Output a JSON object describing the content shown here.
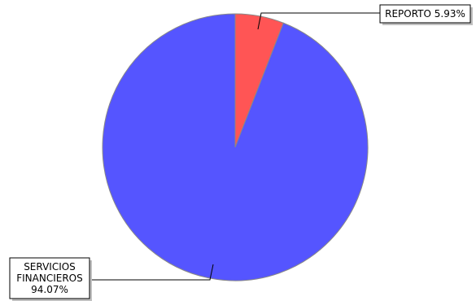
{
  "chart_data": {
    "type": "pie",
    "title": "",
    "slices": [
      {
        "category": "REPORTO",
        "value": 5.93,
        "label_lines": [
          "REPORTO 5.93%"
        ],
        "color": "#ff5555"
      },
      {
        "category": "SERVICIOS FINANCIEROS",
        "value": 94.07,
        "label_lines": [
          "SERVICIOS",
          "FINANCIEROS",
          "94.07%"
        ],
        "color": "#5555ff"
      }
    ],
    "slice_border_color": "#888888",
    "label_box_shadow_color": "#c0c0c0",
    "legend": "none"
  }
}
